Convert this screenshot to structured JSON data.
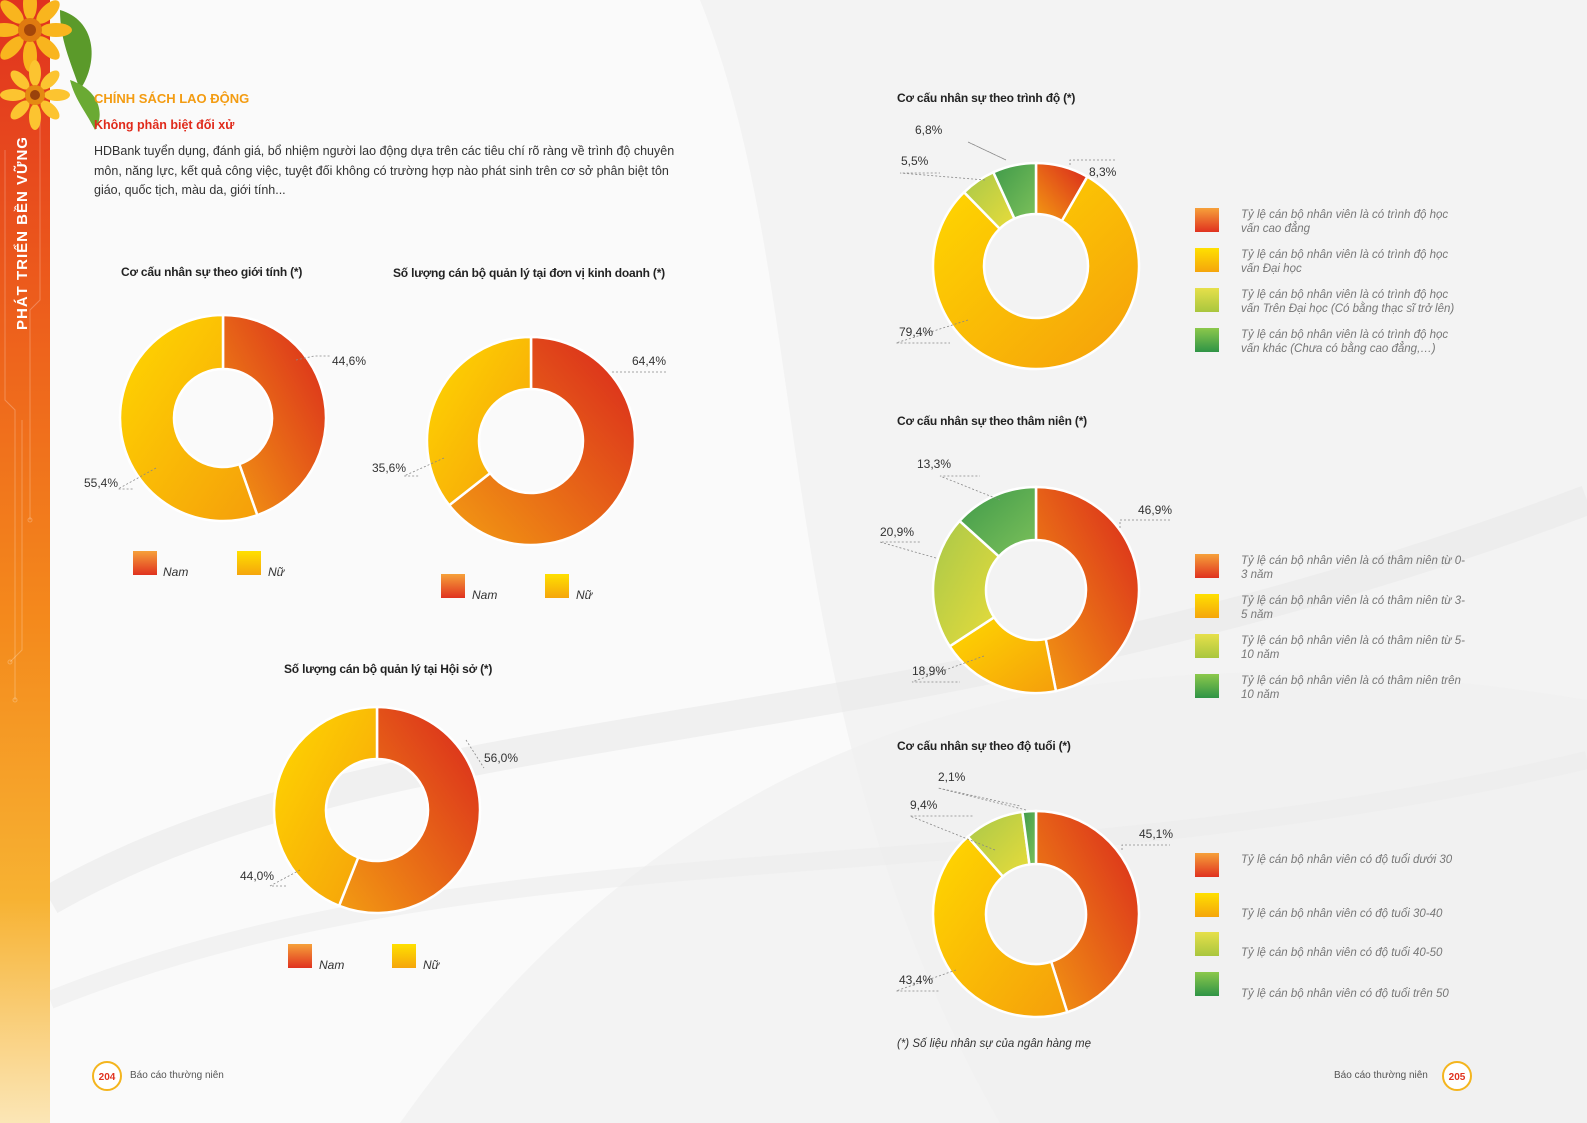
{
  "side_title": "PHÁT TRIỂN BỀN VỮNG",
  "section_title": "CHÍNH SÁCH LAO ĐỘNG",
  "sub_title": "Không phân biệt đối xử",
  "body_text": "HDBank tuyển dụng, đánh giá, bổ nhiệm người lao động dựa trên các tiêu chí rõ ràng về trình độ chuyên môn, năng lực, kết quả công việc, tuyệt đối không có trường hợp nào phát sinh trên cơ sở phân biệt tôn giáo, quốc tịch, màu da, giới tính...",
  "footnote": "(*) Số liệu nhân sự của ngân hàng mẹ",
  "footer": {
    "left_page": "204",
    "left_text": "Báo cáo thường niên",
    "right_page": "205",
    "right_text": "Báo cáo thường niên"
  },
  "colors": {
    "red": "#e0321f",
    "orange": "#f39c12",
    "yellow": "#ffd200",
    "lime": "#c9d43a",
    "green": "#4caf50"
  },
  "chart_data": [
    {
      "id": "gender",
      "type": "pie",
      "title": "Cơ cấu nhân sự theo giới tính (*)",
      "categories": [
        "Nam",
        "Nữ"
      ],
      "values": [
        44.6,
        55.4
      ],
      "labels": [
        "44,6%",
        "55,4%"
      ],
      "legend": [
        "Nam",
        "Nữ"
      ]
    },
    {
      "id": "managers_business",
      "type": "pie",
      "title": "Số lượng cán bộ quản lý tại đơn vị kinh doanh (*)",
      "categories": [
        "Nam",
        "Nữ"
      ],
      "values": [
        64.4,
        35.6
      ],
      "labels": [
        "64,4%",
        "35,6%"
      ],
      "legend": [
        "Nam",
        "Nữ"
      ]
    },
    {
      "id": "managers_hq",
      "type": "pie",
      "title": "Số lượng cán bộ quản lý tại Hội sở (*)",
      "categories": [
        "Nam",
        "Nữ"
      ],
      "values": [
        56.0,
        44.0
      ],
      "labels": [
        "56,0%",
        "44,0%"
      ],
      "legend": [
        "Nam",
        "Nữ"
      ]
    },
    {
      "id": "education",
      "type": "pie",
      "title": "Cơ cấu nhân sự theo trình độ (*)",
      "categories": [
        "Cao đẳng",
        "Đại học",
        "Trên Đại học",
        "Khác"
      ],
      "values": [
        8.3,
        79.4,
        5.5,
        6.8
      ],
      "labels": [
        "8,3%",
        "79,4%",
        "5,5%",
        "6,8%"
      ],
      "legend": [
        "Tỷ lệ cán bộ nhân viên là có trình độ học vấn cao đẳng",
        "Tỷ lệ cán bộ nhân viên là có trình độ học vấn Đại học",
        "Tỷ lệ cán bộ nhân viên là có trình độ học vấn Trên Đại học (Có bằng thạc sĩ trở lên)",
        "Tỷ lệ cán bộ nhân viên là có trình độ học vấn khác (Chưa có bằng cao đẳng,…)"
      ]
    },
    {
      "id": "seniority",
      "type": "pie",
      "title": "Cơ cấu nhân sự theo thâm niên (*)",
      "categories": [
        "0-3 năm",
        "3-5 năm",
        "5-10 năm",
        "trên 10 năm"
      ],
      "values": [
        46.9,
        18.9,
        20.9,
        13.3
      ],
      "labels": [
        "46,9%",
        "18,9%",
        "20,9%",
        "13,3%"
      ],
      "legend": [
        "Tỷ lệ cán bộ nhân viên là có thâm niên từ 0-3 năm",
        "Tỷ lệ cán bộ nhân viên là có thâm niên từ 3-5 năm",
        "Tỷ lệ cán bộ nhân viên là có thâm niên từ 5-10 năm",
        "Tỷ lệ cán bộ nhân viên là có thâm niên trên 10 năm"
      ]
    },
    {
      "id": "age",
      "type": "pie",
      "title": "Cơ cấu nhân sự theo độ tuổi (*)",
      "categories": [
        "dưới 30",
        "30-40",
        "40-50",
        "trên 50"
      ],
      "values": [
        45.1,
        43.4,
        9.4,
        2.1
      ],
      "labels": [
        "45,1%",
        "43,4%",
        "9,4%",
        "2,1%"
      ],
      "legend": [
        "Tỷ lệ cán bộ nhân viên có độ tuổi dưới 30",
        "Tỷ lệ cán bộ nhân viên có độ tuổi 30-40",
        "Tỷ lệ cán bộ nhân viên có độ tuổi 40-50",
        "Tỷ lệ cán bộ nhân viên có độ tuổi trên 50"
      ]
    }
  ]
}
